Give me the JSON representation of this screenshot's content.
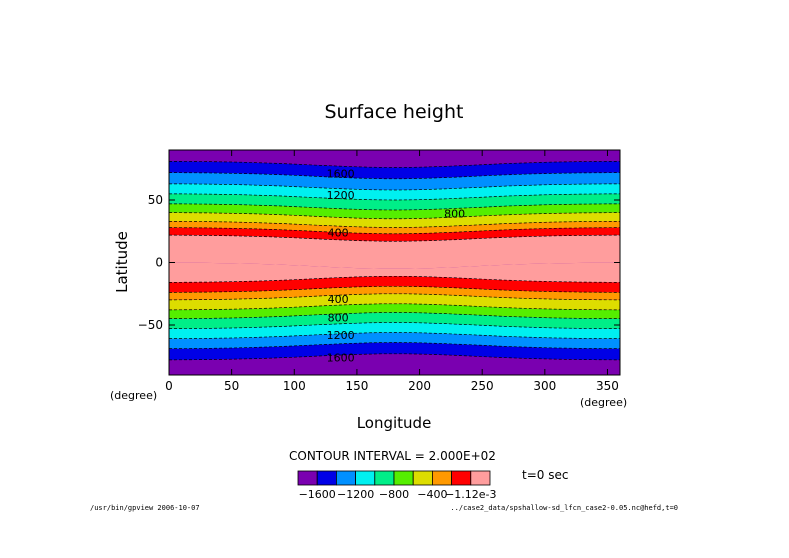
{
  "chart_data": {
    "type": "contour",
    "title": "Surface height",
    "xlabel": "Longitude",
    "ylabel": "Latitude",
    "x_unit": "(degree)",
    "y_unit": "(degree)",
    "xlim": [
      0,
      360
    ],
    "ylim": [
      -90,
      90
    ],
    "xticks": [
      0,
      50,
      100,
      150,
      200,
      250,
      300,
      350
    ],
    "yticks": [
      50,
      0,
      -50
    ],
    "contour_interval_text": "CONTOUR INTERVAL = 2.000E+02",
    "time_text": "t=0 sec",
    "contour_labels": [
      {
        "text": "1600",
        "lon": 137,
        "lat": 75
      },
      {
        "text": "1200",
        "lon": 137,
        "lat": 58
      },
      {
        "text": "800",
        "lon": 228,
        "lat": 43
      },
      {
        "text": "400",
        "lon": 135,
        "lat": 28
      },
      {
        "text": "400",
        "lon": 135,
        "lat": -33
      },
      {
        "text": "800",
        "lon": 135,
        "lat": -48
      },
      {
        "text": "1200",
        "lon": 137,
        "lat": -62
      },
      {
        "text": "1600",
        "lon": 137,
        "lat": -80
      }
    ],
    "band_colors": [
      "#7a00b0",
      "#0000e6",
      "#0090ff",
      "#00f0f0",
      "#00ee88",
      "#55ee00",
      "#dddd00",
      "#ff9900",
      "#ff0000",
      "#ff9d9d"
    ],
    "band_edges_lat_north": [
      81,
      72,
      63,
      55,
      47,
      40,
      33,
      28,
      22
    ],
    "band_edges_lat_south": [
      -78,
      -69,
      -61,
      -53,
      -45,
      -38,
      -30,
      -24,
      -16
    ],
    "colorbar_labels": [
      "-1600",
      "-1200",
      "-800",
      "-400",
      "-1.12e-3"
    ]
  },
  "footer_left": "/usr/bin/gpview  2006-10-07",
  "footer_right": "../case2_data/spshallow-sd_lfcn_case2-0.05.nc@hefd,t=0"
}
